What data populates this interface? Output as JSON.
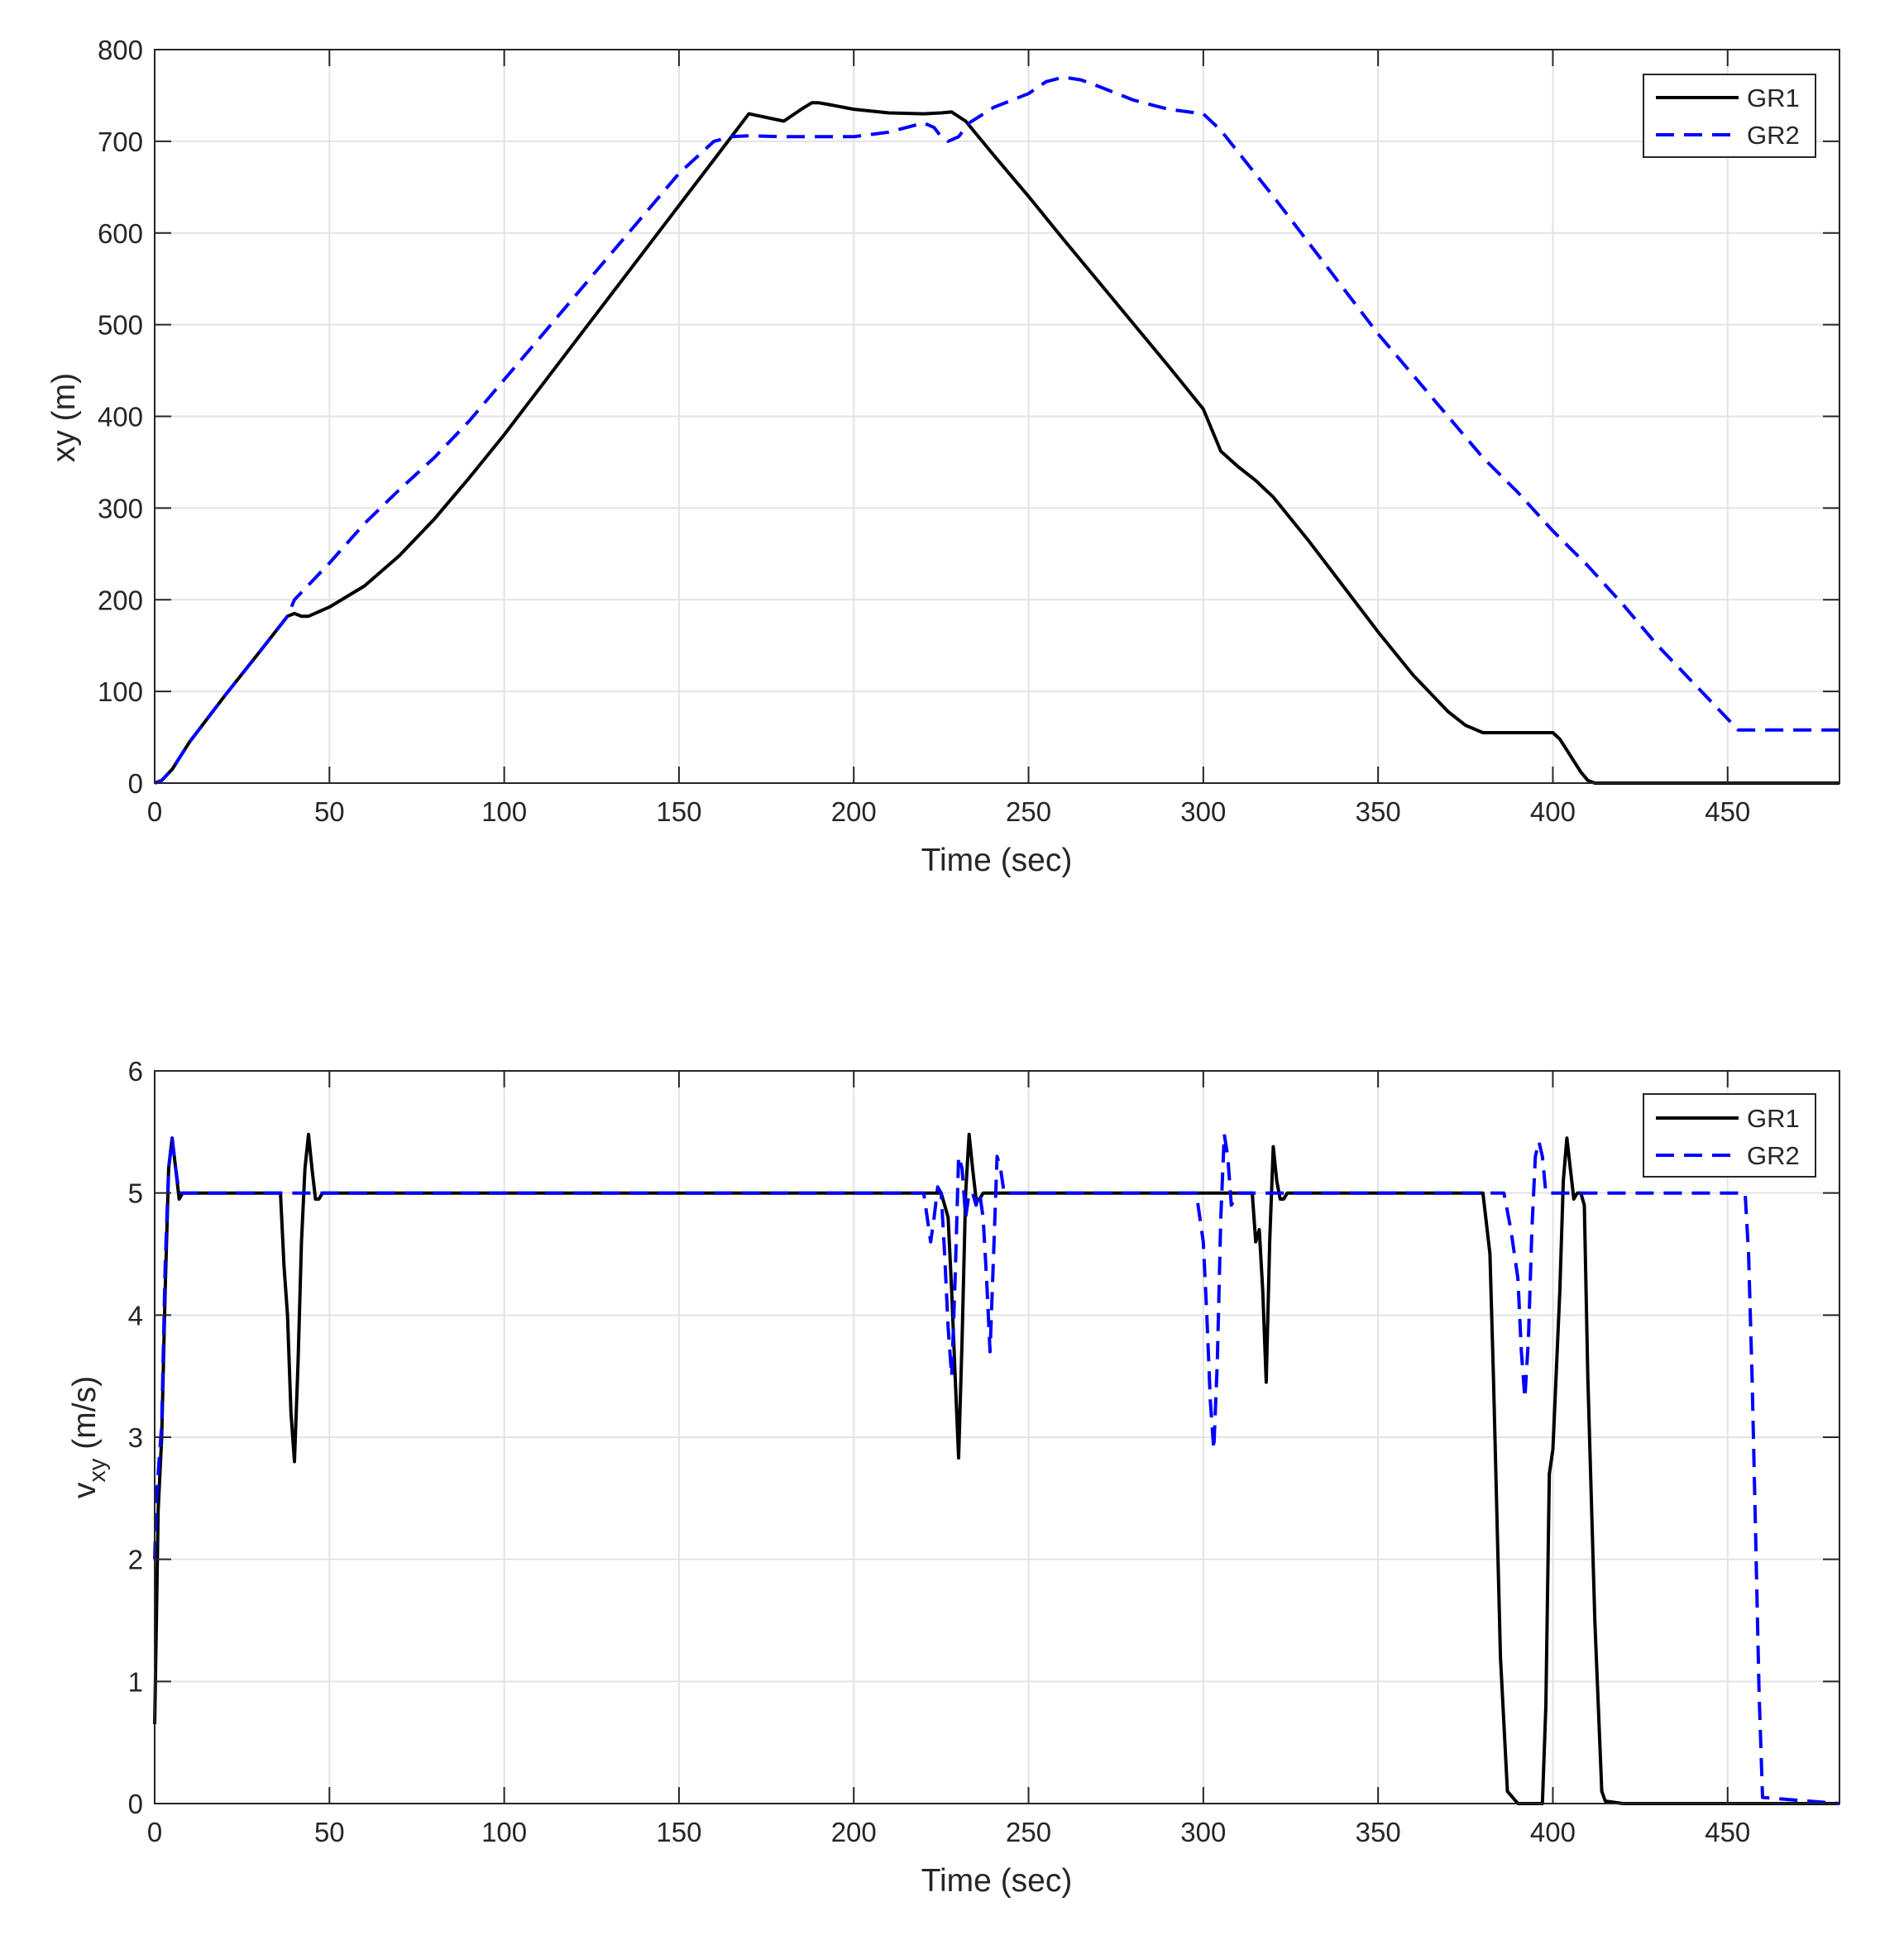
{
  "chart_data": [
    {
      "type": "line",
      "title": "",
      "xlabel": "Time (sec)",
      "ylabel": "xy (m)",
      "xlim": [
        0,
        482
      ],
      "ylim": [
        0,
        800
      ],
      "xticks": [
        0,
        50,
        100,
        150,
        200,
        250,
        300,
        350,
        400,
        450
      ],
      "yticks": [
        0,
        100,
        200,
        300,
        400,
        500,
        600,
        700,
        800
      ],
      "grid": true,
      "legend": "top-right",
      "series": [
        {
          "name": "GR1",
          "color": "#000000",
          "style": "solid",
          "x": [
            0,
            2,
            5,
            10,
            20,
            30,
            38,
            40,
            42,
            44,
            50,
            60,
            70,
            80,
            90,
            100,
            110,
            120,
            130,
            140,
            150,
            160,
            170,
            180,
            185,
            188,
            190,
            193,
            200,
            210,
            220,
            225,
            228,
            232,
            240,
            250,
            260,
            270,
            280,
            290,
            300,
            305,
            310,
            315,
            320,
            330,
            340,
            350,
            360,
            370,
            375,
            380,
            385,
            390,
            395,
            400,
            402,
            405,
            408,
            410,
            412,
            420,
            440,
            460,
            482
          ],
          "y": [
            0,
            3,
            15,
            45,
            95,
            143,
            182,
            185,
            182,
            182,
            192,
            215,
            248,
            288,
            333,
            380,
            430,
            480,
            530,
            580,
            630,
            680,
            730,
            722,
            735,
            742,
            742,
            740,
            735,
            731,
            730,
            731,
            732,
            722,
            685,
            640,
            593,
            547,
            501,
            455,
            408,
            362,
            345,
            330,
            312,
            265,
            215,
            165,
            118,
            78,
            63,
            55,
            55,
            55,
            55,
            55,
            48,
            30,
            12,
            3,
            0,
            0,
            0,
            0,
            0
          ]
        },
        {
          "name": "GR2",
          "color": "#0000ff",
          "style": "dashed",
          "x": [
            0,
            2,
            5,
            10,
            20,
            30,
            38,
            40,
            50,
            60,
            70,
            80,
            90,
            100,
            110,
            120,
            130,
            140,
            150,
            160,
            165,
            170,
            180,
            190,
            200,
            210,
            220,
            223,
            225,
            227,
            230,
            233,
            240,
            250,
            255,
            260,
            265,
            270,
            280,
            290,
            300,
            305,
            310,
            320,
            330,
            340,
            350,
            360,
            370,
            380,
            390,
            400,
            410,
            420,
            430,
            440,
            450,
            453,
            460,
            482
          ],
          "y": [
            0,
            3,
            15,
            45,
            95,
            143,
            182,
            200,
            240,
            283,
            320,
            355,
            395,
            440,
            485,
            530,
            575,
            620,
            665,
            700,
            705,
            706,
            705,
            705,
            705,
            710,
            720,
            715,
            705,
            700,
            705,
            720,
            737,
            752,
            765,
            770,
            767,
            760,
            745,
            735,
            730,
            712,
            688,
            640,
            590,
            540,
            490,
            445,
            400,
            355,
            317,
            275,
            237,
            195,
            150,
            110,
            70,
            58,
            58,
            58
          ]
        }
      ]
    },
    {
      "type": "line",
      "title": "",
      "xlabel": "Time (sec)",
      "ylabel_main": "v",
      "ylabel_sub": "xy",
      "ylabel_unit": " (m/s)",
      "xlim": [
        0,
        482
      ],
      "ylim": [
        0,
        6
      ],
      "xticks": [
        0,
        50,
        100,
        150,
        200,
        250,
        300,
        350,
        400,
        450
      ],
      "yticks": [
        0,
        1,
        2,
        3,
        4,
        5,
        6
      ],
      "grid": true,
      "legend": "top-right",
      "series": [
        {
          "name": "GR1",
          "color": "#000000",
          "style": "solid",
          "x": [
            0,
            0.5,
            1,
            2,
            3,
            4,
            5,
            6,
            7,
            8,
            10,
            15,
            30,
            36,
            37,
            38,
            39,
            40,
            41,
            42,
            43,
            44,
            45,
            46,
            47,
            48,
            49,
            50,
            100,
            150,
            200,
            225,
            227,
            228,
            229,
            230,
            231,
            232,
            233,
            234,
            235,
            236,
            237,
            238,
            240,
            300,
            314,
            315,
            316,
            317,
            318,
            319,
            320,
            321,
            322,
            323,
            324,
            325,
            326,
            330,
            350,
            380,
            382,
            383,
            385,
            387,
            390,
            395,
            397,
            398,
            399,
            400,
            402,
            403,
            404,
            405,
            406,
            407,
            408,
            409,
            410,
            412,
            414,
            415,
            420,
            482
          ],
          "y": [
            0.65,
            1.5,
            2.4,
            3.0,
            4.2,
            5.2,
            5.45,
            5.2,
            4.95,
            5.0,
            5.0,
            5.0,
            5.0,
            5.0,
            4.4,
            4.0,
            3.2,
            2.8,
            3.6,
            4.6,
            5.2,
            5.48,
            5.2,
            4.95,
            4.95,
            5.0,
            5.0,
            5.0,
            5.0,
            5.0,
            5.0,
            5.0,
            4.8,
            4.2,
            3.5,
            2.83,
            3.8,
            5.0,
            5.48,
            5.2,
            4.95,
            4.95,
            5.0,
            5.0,
            5.0,
            5.0,
            5.0,
            4.6,
            4.7,
            4.2,
            3.45,
            4.6,
            5.38,
            5.1,
            4.95,
            4.95,
            5.0,
            5.0,
            5.0,
            5.0,
            5.0,
            5.0,
            4.5,
            3.5,
            1.2,
            0.1,
            0.0,
            0.0,
            0.0,
            0.8,
            2.7,
            2.9,
            4.2,
            5.1,
            5.45,
            5.2,
            4.95,
            5.0,
            5.0,
            4.9,
            3.5,
            1.5,
            0.1,
            0.02,
            0.0,
            0.0
          ]
        },
        {
          "name": "GR2",
          "color": "#0000ff",
          "style": "dashed",
          "x": [
            0,
            0.5,
            1,
            2,
            3,
            4,
            5,
            6,
            7,
            8,
            10,
            50,
            100,
            150,
            200,
            220,
            221,
            222,
            223,
            224,
            225,
            226,
            227,
            228,
            229,
            230,
            231,
            232,
            233,
            234,
            235,
            236,
            237,
            238,
            239,
            240,
            241,
            242,
            243,
            250,
            298,
            300,
            301,
            302,
            303,
            304,
            305,
            306,
            307,
            308,
            310,
            350,
            385,
            386,
            388,
            390,
            391,
            392,
            393,
            394,
            395,
            396,
            397,
            398,
            400,
            420,
            455,
            456,
            457,
            458,
            459,
            460,
            482
          ],
          "y": [
            2.0,
            2.5,
            2.7,
            3.1,
            4.4,
            5.2,
            5.45,
            5.2,
            5.0,
            5.0,
            5.0,
            5.0,
            5.0,
            5.0,
            5.0,
            5.0,
            4.8,
            4.6,
            4.8,
            5.05,
            5.0,
            4.5,
            3.9,
            3.5,
            4.3,
            5.3,
            5.2,
            4.8,
            5.0,
            5.0,
            4.9,
            5.0,
            4.8,
            4.3,
            3.7,
            4.5,
            5.3,
            5.2,
            5.0,
            5.0,
            5.0,
            4.6,
            4.0,
            3.3,
            2.9,
            3.6,
            4.8,
            5.48,
            5.3,
            4.9,
            5.0,
            5.0,
            5.0,
            5.0,
            4.7,
            4.3,
            3.7,
            3.32,
            3.8,
            4.7,
            5.3,
            5.42,
            5.3,
            5.0,
            5.0,
            5.0,
            5.0,
            4.5,
            3.5,
            2.2,
            0.9,
            0.05,
            0.0
          ]
        }
      ]
    }
  ]
}
